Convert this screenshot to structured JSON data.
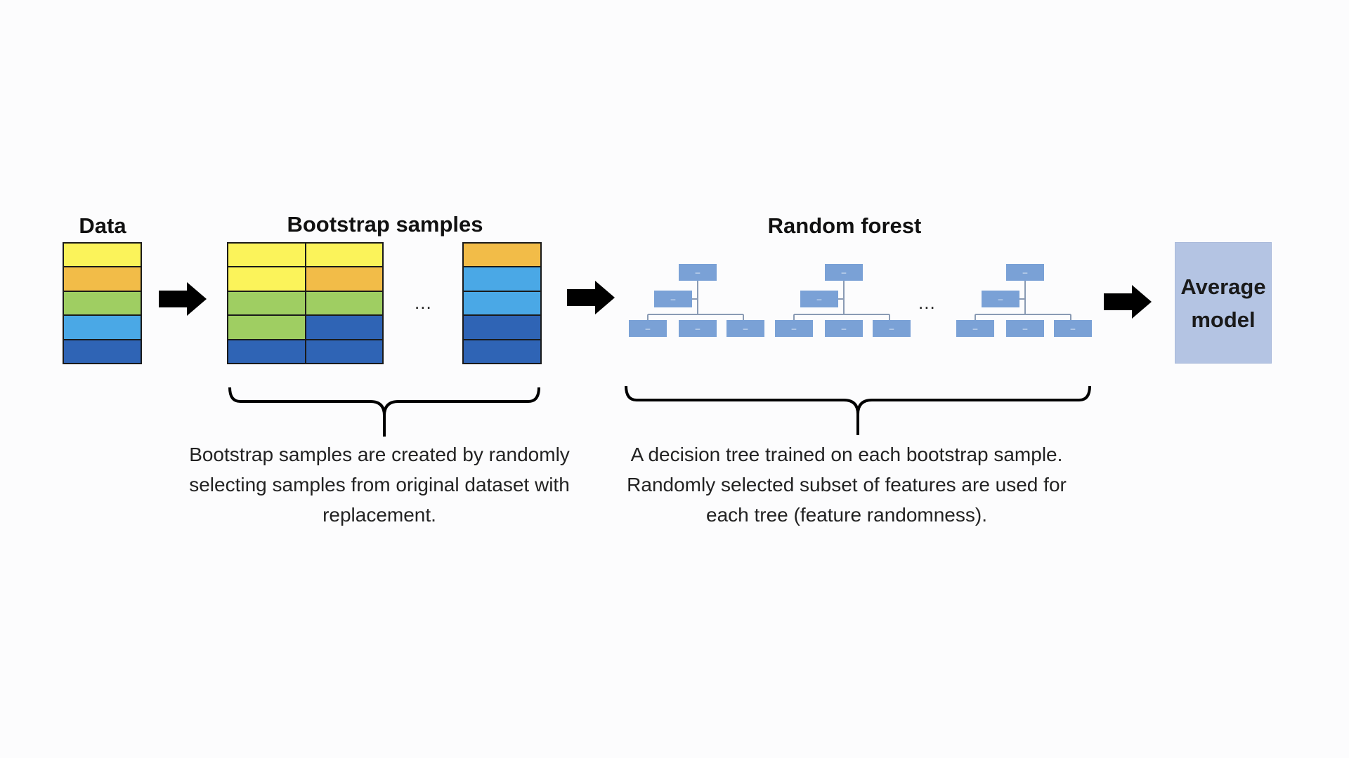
{
  "titles": {
    "data": "Data",
    "bootstrap": "Bootstrap samples",
    "forest": "Random forest"
  },
  "colors": {
    "yellow": "#fbf35a",
    "orange": "#f2bc48",
    "green": "#9fce62",
    "light_blue": "#4aa8e6",
    "dark_blue": "#2f64b5",
    "tree_node": "#7aa1d6",
    "avg_box": "#b4c4e3"
  },
  "data_table": {
    "rows": [
      [
        "yellow"
      ],
      [
        "orange"
      ],
      [
        "green"
      ],
      [
        "light_blue"
      ],
      [
        "dark_blue"
      ]
    ]
  },
  "bootstrap_table_1": {
    "rows": [
      [
        "yellow",
        "yellow"
      ],
      [
        "yellow",
        "orange"
      ],
      [
        "green",
        "green"
      ],
      [
        "green",
        "dark_blue"
      ],
      [
        "dark_blue",
        "dark_blue"
      ]
    ]
  },
  "bootstrap_table_2": {
    "rows": [
      [
        "orange"
      ],
      [
        "light_blue"
      ],
      [
        "light_blue"
      ],
      [
        "dark_blue"
      ],
      [
        "dark_blue"
      ]
    ]
  },
  "ellipsis": "...",
  "tree_node_glyph": "–",
  "average_model": "Average\nmodel",
  "captions": {
    "bootstrap": "Bootstrap samples are created by randomly selecting samples from original dataset with replacement.",
    "forest": "A decision tree trained on each bootstrap sample. Randomly selected subset of features are used for each tree (feature randomness)."
  },
  "icons": [
    "right-arrow-icon",
    "curly-brace-icon",
    "decision-tree-icon"
  ]
}
